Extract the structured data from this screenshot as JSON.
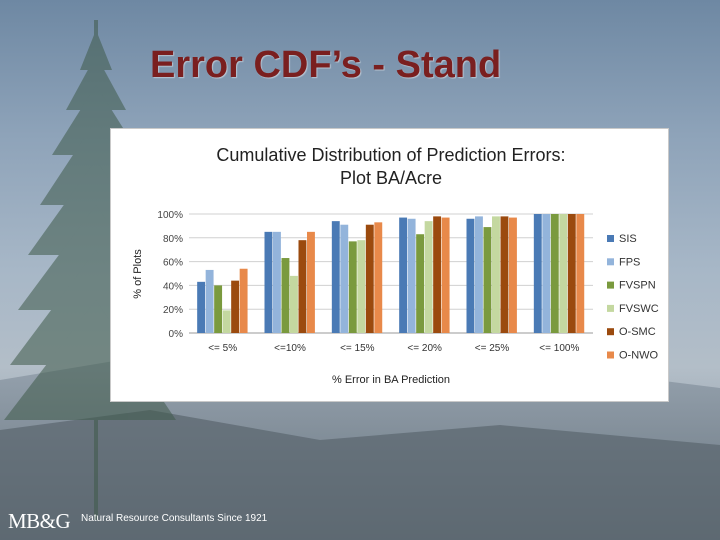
{
  "slide": {
    "title": "Error CDF’s - Stand",
    "footer_logo": "MB&G",
    "footer_tagline": "Natural Resource Consultants Since 1921"
  },
  "chart_data": {
    "type": "bar",
    "title": [
      "Cumulative Distribution of Prediction Errors:",
      "Plot BA/Acre"
    ],
    "xlabel": "% Error in BA Prediction",
    "ylabel": "% of Plots",
    "ylim": [
      0,
      100
    ],
    "yticks": [
      "0%",
      "20%",
      "40%",
      "60%",
      "80%",
      "100%"
    ],
    "grid": true,
    "legend_position": "right",
    "categories": [
      "<= 5%",
      "<=10%",
      "<= 15%",
      "<= 20%",
      "<= 25%",
      "<= 100%"
    ],
    "series": [
      {
        "name": "SIS",
        "color": "#4a7ab5",
        "values": [
          43,
          85,
          94,
          97,
          96,
          100
        ]
      },
      {
        "name": "FPS",
        "color": "#93b4db",
        "values": [
          53,
          85,
          91,
          96,
          98,
          100
        ]
      },
      {
        "name": "FVSPN",
        "color": "#7a9a3e",
        "values": [
          40,
          63,
          77,
          83,
          89,
          100
        ]
      },
      {
        "name": "FVSWC",
        "color": "#c4d8a0",
        "values": [
          19,
          48,
          78,
          94,
          98,
          100
        ]
      },
      {
        "name": "O-SMC",
        "color": "#9b4a0e",
        "values": [
          44,
          78,
          91,
          98,
          98,
          100
        ]
      },
      {
        "name": "O-NWO",
        "color": "#e8894a",
        "values": [
          54,
          85,
          93,
          97,
          97,
          100
        ]
      }
    ]
  }
}
